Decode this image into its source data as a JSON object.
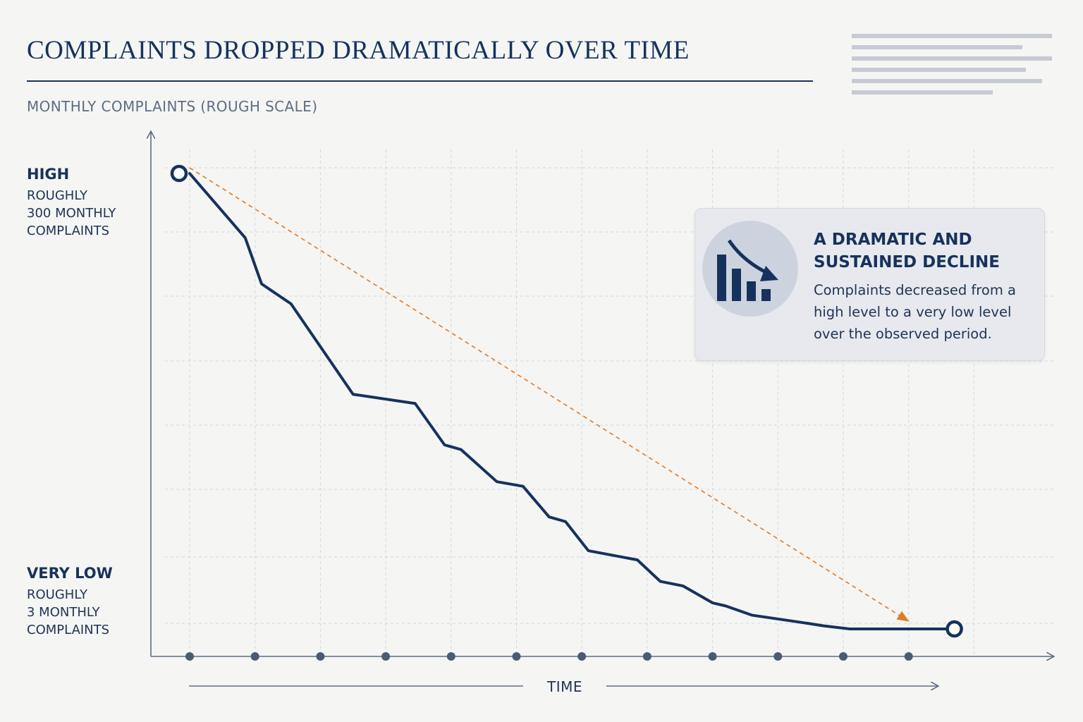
{
  "chart_data": {
    "type": "line",
    "title": "COMPLAINTS DROPPED DRAMATICALLY OVER TIME",
    "subtitle": "MONTHLY COMPLAINTS (ROUGH SCALE)",
    "xlabel": "TIME",
    "ylabel": "",
    "grid": true,
    "y_levels": {
      "high": {
        "label": "HIGH",
        "description": "ROUGHLY\n300 MONTHLY\nCOMPLAINTS",
        "value": 300
      },
      "low": {
        "label": "VERY LOW",
        "description": "ROUGHLY\n3 MONTHLY\nCOMPLAINTS",
        "value": 3
      }
    },
    "series": [
      {
        "x": [
          0,
          0.85,
          1.1,
          1.55,
          2.5,
          3.45,
          3.9,
          4.15,
          4.7,
          5.1,
          5.5,
          5.75,
          6.1,
          6.85,
          7.2,
          7.55,
          8.0,
          8.2,
          8.6,
          9.4,
          9.7,
          10.1,
          11.0,
          11.35,
          11.7
        ],
        "values": [
          300,
          258,
          228,
          215,
          156,
          150,
          123,
          120,
          99,
          96,
          76,
          73,
          54,
          48,
          34,
          31,
          20,
          18,
          12,
          7,
          5,
          3,
          3,
          3,
          3
        ]
      }
    ],
    "trend_line": {
      "from": [
        0,
        300
      ],
      "to": [
        11,
        8
      ],
      "color": "#e07b27"
    },
    "line_color": "#16325c",
    "callout": {
      "title": "A DRAMATIC AND SUSTAINED DECLINE",
      "text": "Complaints decreased from a high level to a very low level over the observed period.",
      "icon": "declining-bar-chart-icon"
    }
  }
}
